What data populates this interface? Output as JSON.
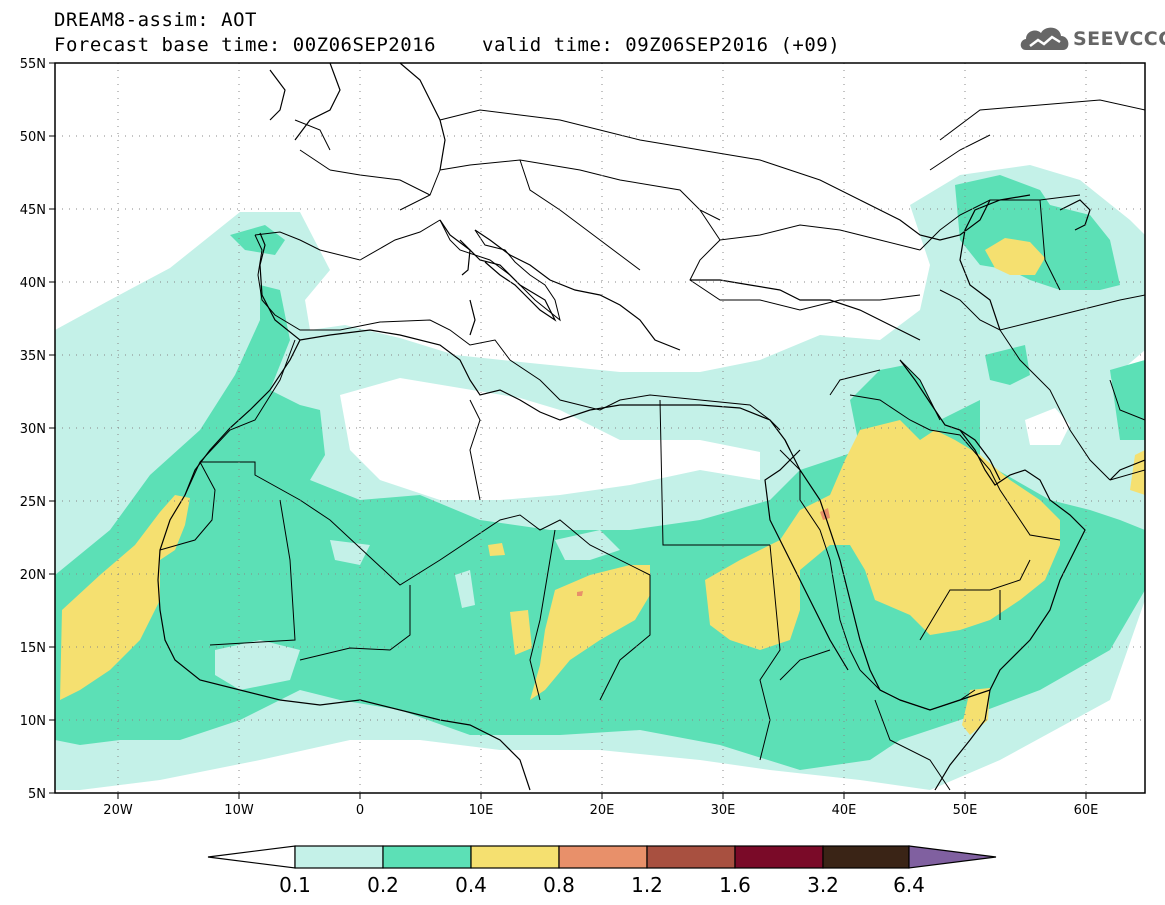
{
  "header": {
    "title_line1": "DREAM8-assim: AOT",
    "title_line2": "Forecast base time: 00Z06SEP2016",
    "valid_time": "valid time: 09Z06SEP2016 (+09)",
    "logo_text": "SEEVCCC"
  },
  "map": {
    "lat_labels": [
      "55N",
      "50N",
      "45N",
      "40N",
      "35N",
      "30N",
      "25N",
      "20N",
      "15N",
      "10N",
      "5N"
    ],
    "lon_labels": [
      "20W",
      "10W",
      "0",
      "10E",
      "20E",
      "30E",
      "40E",
      "50E",
      "60E"
    ],
    "lon_range": [
      -25,
      65
    ],
    "lat_range": [
      5,
      55
    ],
    "grid": true
  },
  "colorbar": {
    "labels": [
      "0.1",
      "0.2",
      "0.4",
      "0.8",
      "1.2",
      "1.6",
      "3.2",
      "6.4"
    ],
    "colors": [
      "#c4f1e8",
      "#5ce0b6",
      "#f5e070",
      "#e8906a",
      "#a85040",
      "#7a0a28",
      "#3a2416",
      "#8060a0"
    ]
  },
  "colors": {
    "aot_0_1": "#c4f1e8",
    "aot_0_2": "#5ce0b6",
    "aot_0_4": "#f5e070",
    "aot_0_8": "#e8906a"
  }
}
